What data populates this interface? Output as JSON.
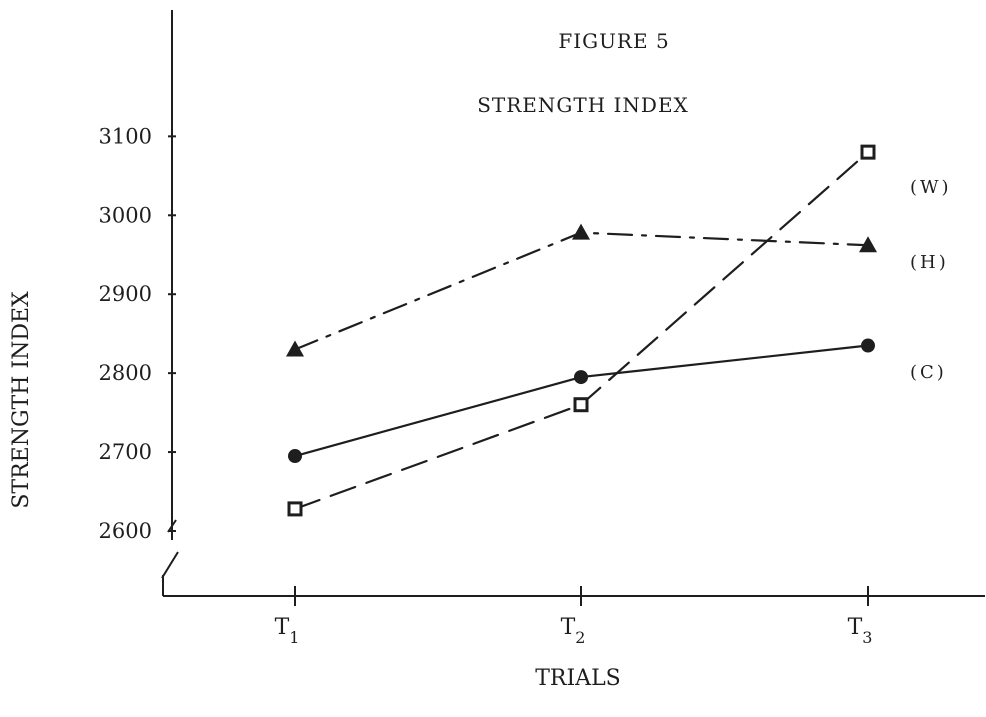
{
  "chart_data": {
    "type": "line",
    "title": "FIGURE 5",
    "subtitle": "STRENGTH INDEX",
    "xlabel": "TRIALS",
    "ylabel": "STRENGTH INDEX",
    "categories": [
      "T1",
      "T2",
      "T3"
    ],
    "x_tick_labels": [
      {
        "base": "T",
        "sub": "1"
      },
      {
        "base": "T",
        "sub": "2"
      },
      {
        "base": "T",
        "sub": "3"
      }
    ],
    "y_ticks": [
      2600,
      2700,
      2800,
      2900,
      3000,
      3100
    ],
    "ylim": [
      2500,
      3220
    ],
    "axis_break": true,
    "grid": false,
    "legend": "right, labels at line ends",
    "series": [
      {
        "name": "(W)",
        "values": [
          2628,
          2760,
          3080
        ],
        "marker": "open-square",
        "line_style": "long-dash",
        "color": "#1e1e1e"
      },
      {
        "name": "(H)",
        "values": [
          2830,
          2978,
          2962
        ],
        "marker": "filled-triangle",
        "line_style": "dash-dot",
        "color": "#1e1e1e"
      },
      {
        "name": "(C)",
        "values": [
          2695,
          2795,
          2835
        ],
        "marker": "filled-circle",
        "line_style": "solid",
        "color": "#1e1e1e"
      }
    ]
  }
}
